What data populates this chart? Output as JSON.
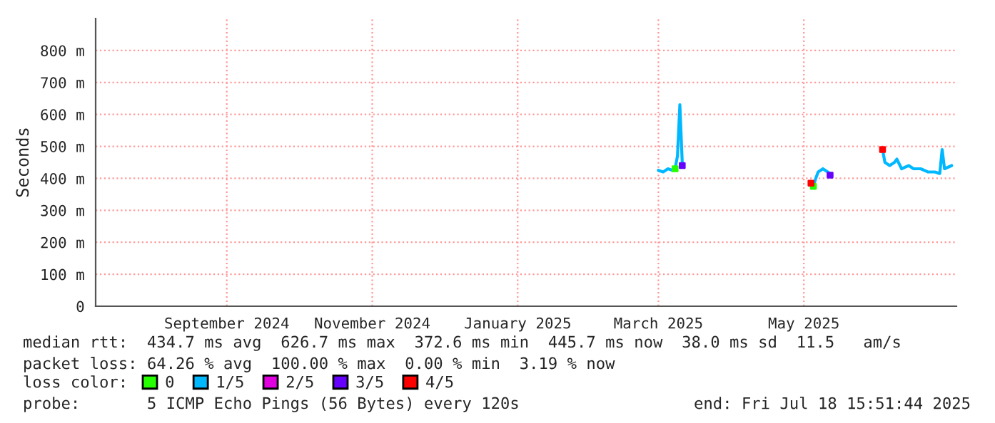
{
  "chart_data": {
    "type": "line",
    "ylabel": "Seconds",
    "xlim": [
      "2024-07-22",
      "2025-07-18"
    ],
    "xticks": [
      {
        "value": "2024-09-15",
        "label": "September 2024"
      },
      {
        "value": "2024-11-15",
        "label": "November 2024"
      },
      {
        "value": "2025-01-15",
        "label": "January 2025"
      },
      {
        "value": "2025-03-15",
        "label": "March 2025"
      },
      {
        "value": "2025-05-15",
        "label": "May 2025"
      }
    ],
    "ylim": [
      0,
      900
    ],
    "yticks": [
      0,
      {
        "value": 100,
        "label": "100 m"
      },
      {
        "value": 200,
        "label": "200 m"
      },
      {
        "value": 300,
        "label": "300 m"
      },
      {
        "value": 400,
        "label": "400 m"
      },
      {
        "value": 500,
        "label": "500 m"
      },
      {
        "value": 600,
        "label": "600 m"
      },
      {
        "value": 700,
        "label": "700 m"
      },
      {
        "value": 800,
        "label": "800 m"
      }
    ],
    "grid": true,
    "legend": "bottom",
    "legend_title": "loss color:",
    "series": [
      {
        "name": "0",
        "type": "scatter",
        "color": "#26ff00",
        "x": [
          "2025-03-22",
          "2025-05-19"
        ],
        "values": [
          430,
          375
        ]
      },
      {
        "name": "1/5",
        "color": "#00b8ff",
        "x": [
          "2025-03-15",
          "2025-03-17",
          "2025-03-19",
          "2025-03-21",
          "2025-03-22",
          "2025-03-23",
          "2025-03-24",
          "2025-03-25",
          "2025-04-20",
          "2025-05-18",
          "2025-05-19",
          "2025-05-20",
          "2025-05-21",
          "2025-05-23",
          "2025-05-24",
          "2025-05-26",
          "2025-06-05",
          "2025-06-17",
          "2025-06-18",
          "2025-06-20",
          "2025-06-22",
          "2025-06-23",
          "2025-06-25",
          "2025-06-28",
          "2025-06-30",
          "2025-07-03",
          "2025-07-06",
          "2025-07-09",
          "2025-07-11",
          "2025-07-12",
          "2025-07-13",
          "2025-07-16"
        ],
        "values": [
          425,
          420,
          430,
          425,
          430,
          470,
          630,
          450,
          null,
          380,
          375,
          400,
          420,
          430,
          425,
          415,
          null,
          490,
          450,
          440,
          450,
          460,
          430,
          440,
          430,
          430,
          420,
          420,
          415,
          490,
          430,
          440
        ]
      },
      {
        "name": "2/5",
        "type": "scatter",
        "color": "#e000e0"
      },
      {
        "name": "3/5",
        "type": "scatter",
        "color": "#6600ff",
        "x": [
          "2025-03-25",
          "2025-05-26"
        ],
        "values": [
          440,
          410
        ]
      },
      {
        "name": "4/5",
        "type": "scatter",
        "color": "#ff0000",
        "x": [
          "2025-05-18",
          "2025-06-17"
        ],
        "values": [
          385,
          490
        ]
      }
    ],
    "annotations": [
      "median rtt:  434.7 ms avg  626.7 ms max  372.6 ms min  445.7 ms now  38.0 ms sd  11.5   am/s",
      "packet loss: 64.26 % avg  100.00 % max  0.00 % min  3.19 % now",
      "probe:       5 ICMP Echo Pings (56 Bytes) every 120s",
      "end: Fri Jul 18 15:51:44 2025"
    ]
  }
}
